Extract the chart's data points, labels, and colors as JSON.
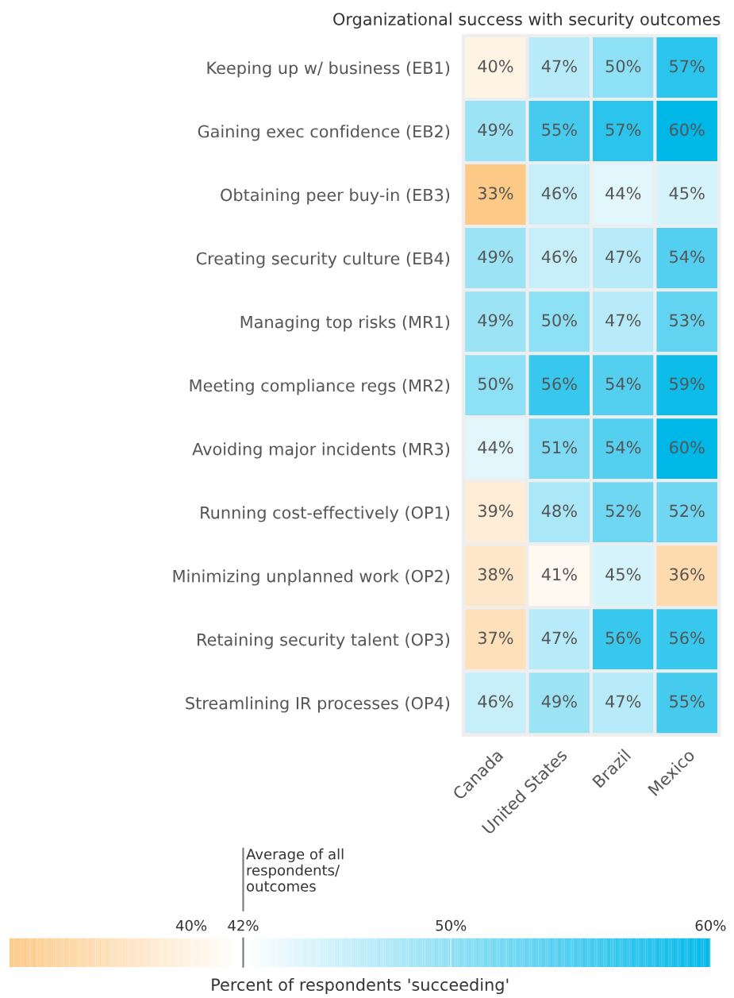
{
  "chart_data": {
    "type": "heatmap",
    "title": "Organizational success with security outcomes",
    "categories": [
      "Canada",
      "United States",
      "Brazil",
      "Mexico"
    ],
    "y_categories": [
      "Keeping up w/ business (EB1)",
      "Gaining exec confidence (EB2)",
      "Obtaining peer buy-in (EB3)",
      "Creating security culture (EB4)",
      "Managing top risks (MR1)",
      "Meeting compliance regs (MR2)",
      "Avoiding major incidents (MR3)",
      "Running cost-effectively (OP1)",
      "Minimizing unplanned work (OP2)",
      "Retaining security talent (OP3)",
      "Streamlining IR processes (OP4)"
    ],
    "cells": [
      [
        40,
        47,
        50,
        57
      ],
      [
        49,
        55,
        57,
        60
      ],
      [
        33,
        46,
        44,
        45
      ],
      [
        49,
        46,
        47,
        54
      ],
      [
        49,
        50,
        47,
        53
      ],
      [
        50,
        56,
        54,
        59
      ],
      [
        44,
        51,
        54,
        60
      ],
      [
        39,
        48,
        52,
        52
      ],
      [
        38,
        41,
        45,
        36
      ],
      [
        37,
        47,
        56,
        56
      ],
      [
        46,
        49,
        47,
        55
      ]
    ],
    "cell_labels": [
      [
        "40%",
        "47%",
        "50%",
        "57%"
      ],
      [
        "49%",
        "55%",
        "57%",
        "60%"
      ],
      [
        "33%",
        "46%",
        "44%",
        "45%"
      ],
      [
        "49%",
        "46%",
        "47%",
        "54%"
      ],
      [
        "49%",
        "50%",
        "47%",
        "53%"
      ],
      [
        "50%",
        "56%",
        "54%",
        "59%"
      ],
      [
        "44%",
        "51%",
        "54%",
        "60%"
      ],
      [
        "39%",
        "48%",
        "52%",
        "52%"
      ],
      [
        "38%",
        "41%",
        "45%",
        "36%"
      ],
      [
        "37%",
        "47%",
        "56%",
        "56%"
      ],
      [
        "46%",
        "49%",
        "47%",
        "55%"
      ]
    ],
    "colors": [
      "#fdc986",
      "#ffffff",
      "#00b8e8"
    ],
    "clim": [
      33,
      60
    ],
    "cticks": [
      {
        "value": 40,
        "label": "40%"
      },
      {
        "value": 42,
        "label": "42%"
      },
      {
        "value": 50,
        "label": "50%"
      },
      {
        "value": 60,
        "label": "60%"
      }
    ],
    "clabel": "Percent of respondents 'succeeding'",
    "annotations": [
      "Average of all\nrespondents/\noutcomes"
    ]
  }
}
